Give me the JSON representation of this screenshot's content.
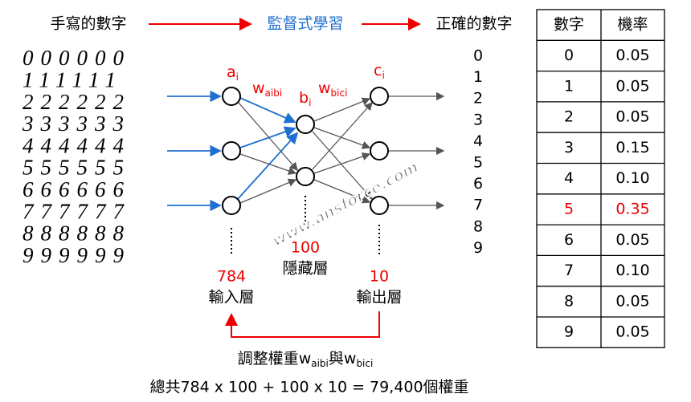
{
  "header": {
    "input_label": "手寫的數字",
    "process_label": "監督式學習",
    "output_label": "正確的數字"
  },
  "handwritten_digits": [
    "000000",
    "111111",
    "222222",
    "333333",
    "444444",
    "555555",
    "666666",
    "777777",
    "888888",
    "999999"
  ],
  "network": {
    "a": {
      "base": "a",
      "sub": "i"
    },
    "w_ab": {
      "base": "w",
      "sub": "aibi"
    },
    "b": {
      "base": "b",
      "sub": "i"
    },
    "w_bc": {
      "base": "w",
      "sub": "bici"
    },
    "c": {
      "base": "c",
      "sub": "i"
    },
    "input_count": "784",
    "input_layer": "輸入層",
    "hidden_count": "100",
    "hidden_layer": "隱藏層",
    "output_count": "10",
    "output_layer": "輸出層",
    "output_digits": [
      "0",
      "1",
      "2",
      "3",
      "4",
      "5",
      "6",
      "7",
      "8",
      "9"
    ]
  },
  "footer": {
    "adjust": {
      "text": "調整權重",
      "w1": {
        "base": "w",
        "sub": "aibi"
      },
      "conj": "與",
      "w2": {
        "base": "w",
        "sub": "bici"
      }
    },
    "total": "總共784 x 100 + 100 x 10 = 79,400個權重"
  },
  "table": {
    "headers": [
      "數字",
      "機率"
    ],
    "rows": [
      [
        "0",
        "0.05"
      ],
      [
        "1",
        "0.05"
      ],
      [
        "2",
        "0.05"
      ],
      [
        "3",
        "0.15"
      ],
      [
        "4",
        "0.10"
      ],
      [
        "5",
        "0.35"
      ],
      [
        "6",
        "0.05"
      ],
      [
        "7",
        "0.10"
      ],
      [
        "8",
        "0.05"
      ],
      [
        "9",
        "0.05"
      ]
    ],
    "highlight_row": 5
  },
  "watermark": "www.ansforce.com"
}
